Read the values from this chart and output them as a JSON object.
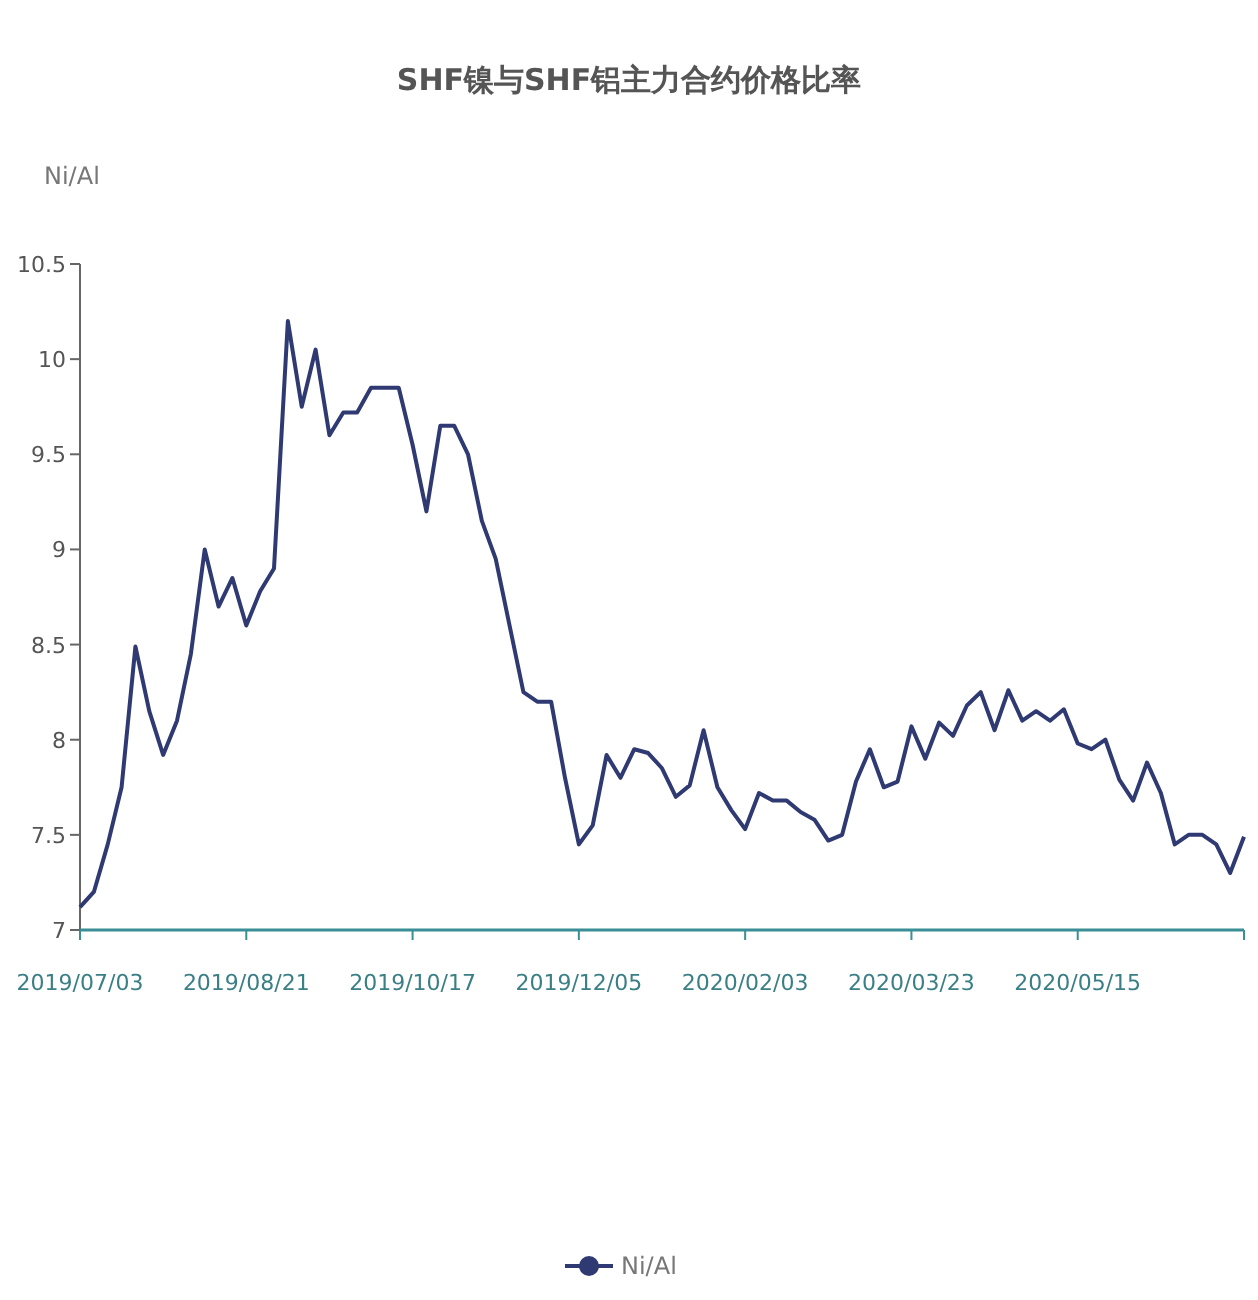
{
  "chart_data": {
    "type": "line",
    "title": "SHF镍与SHF铝主力合约价格比率",
    "ylabel": "Ni/Al",
    "categories": [
      "2019/07/03",
      null,
      null,
      null,
      null,
      null,
      null,
      null,
      null,
      null,
      null,
      null,
      "2019/08/21",
      null,
      null,
      null,
      null,
      null,
      null,
      null,
      null,
      null,
      null,
      null,
      "2019/10/17",
      null,
      null,
      null,
      null,
      null,
      null,
      null,
      null,
      null,
      null,
      null,
      "2019/12/05",
      null,
      null,
      null,
      null,
      null,
      null,
      null,
      null,
      null,
      null,
      null,
      "2020/02/03",
      null,
      null,
      null,
      null,
      null,
      null,
      null,
      null,
      null,
      null,
      null,
      "2020/03/23",
      null,
      null,
      null,
      null,
      null,
      null,
      null,
      null,
      null,
      null,
      null,
      "2020/05/15",
      null,
      null,
      null,
      null,
      null,
      null,
      null,
      null,
      null,
      null,
      null,
      null
    ],
    "series": [
      {
        "name": "Ni/Al",
        "color": "#2f3a73",
        "values": [
          7.12,
          7.2,
          7.45,
          7.75,
          8.49,
          8.15,
          7.92,
          8.1,
          8.45,
          9.0,
          8.7,
          8.85,
          8.6,
          8.78,
          8.9,
          10.2,
          9.75,
          10.05,
          9.6,
          9.72,
          9.72,
          9.85,
          9.85,
          9.85,
          9.55,
          9.2,
          9.65,
          9.65,
          9.5,
          9.15,
          8.95,
          8.6,
          8.25,
          8.2,
          8.2,
          7.8,
          7.45,
          7.55,
          7.92,
          7.8,
          7.95,
          7.93,
          7.85,
          7.7,
          7.76,
          8.05,
          7.75,
          7.63,
          7.53,
          7.72,
          7.68,
          7.68,
          7.62,
          7.58,
          7.47,
          7.5,
          7.78,
          7.95,
          7.75,
          7.78,
          8.07,
          7.9,
          8.09,
          8.02,
          8.18,
          8.25,
          8.05,
          8.26,
          8.1,
          8.15,
          8.1,
          8.16,
          7.98,
          7.95,
          8.0,
          7.79,
          7.68,
          7.88,
          7.72,
          7.45,
          7.5,
          7.5,
          7.45,
          7.3,
          7.49
        ]
      }
    ],
    "ylim": [
      7,
      10.5
    ],
    "yticks": [
      7,
      7.5,
      8,
      8.5,
      9,
      9.5,
      10,
      10.5
    ],
    "legend": "bottom",
    "marker": "none",
    "line_style": "solid",
    "grid": false
  }
}
